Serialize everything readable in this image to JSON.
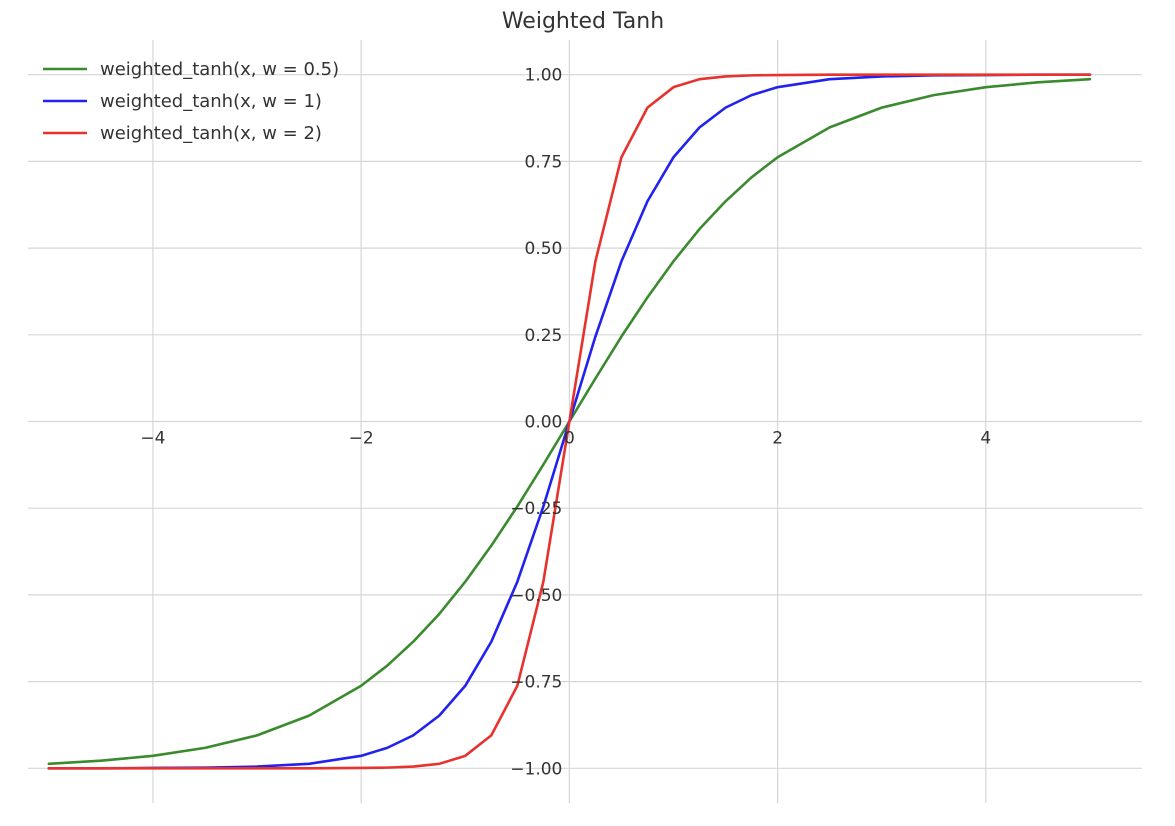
{
  "chart_data": {
    "type": "line",
    "title": "Weighted Tanh",
    "xlabel": "",
    "ylabel": "",
    "xlim": [
      -5.2,
      5.5
    ],
    "ylim": [
      -1.1,
      1.1
    ],
    "x_ticks": [
      -4,
      -2,
      0,
      2,
      4
    ],
    "x_tick_labels": [
      "−4",
      "−2",
      "0",
      "2",
      "4"
    ],
    "y_ticks": [
      -1.0,
      -0.75,
      -0.5,
      -0.25,
      0.0,
      0.25,
      0.5,
      0.75,
      1.0
    ],
    "y_tick_labels": [
      "−1.00",
      "−0.75",
      "−0.50",
      "−0.25",
      "0.00",
      "0.25",
      "0.50",
      "0.75",
      "1.00"
    ],
    "grid": true,
    "legend_position": "top-left",
    "x": [
      -5,
      -4.5,
      -4,
      -3.5,
      -3,
      -2.5,
      -2,
      -1.75,
      -1.5,
      -1.25,
      -1,
      -0.75,
      -0.5,
      -0.25,
      0,
      0.25,
      0.5,
      0.75,
      1,
      1.25,
      1.5,
      1.75,
      2,
      2.5,
      3,
      3.5,
      4,
      4.5,
      5
    ],
    "series": [
      {
        "name": "weighted_tanh(x, w = 0.5)",
        "color": "#3a8a2e",
        "values": [
          -0.987,
          -0.978,
          -0.964,
          -0.941,
          -0.905,
          -0.848,
          -0.762,
          -0.704,
          -0.635,
          -0.555,
          -0.462,
          -0.358,
          -0.245,
          -0.124,
          0.0,
          0.124,
          0.245,
          0.358,
          0.462,
          0.555,
          0.635,
          0.704,
          0.762,
          0.848,
          0.905,
          0.941,
          0.964,
          0.978,
          0.987
        ]
      },
      {
        "name": "weighted_tanh(x, w = 1)",
        "color": "#2222ee",
        "values": [
          -1.0,
          -1.0,
          -0.999,
          -0.998,
          -0.995,
          -0.987,
          -0.964,
          -0.941,
          -0.905,
          -0.848,
          -0.762,
          -0.635,
          -0.462,
          -0.245,
          0.0,
          0.245,
          0.462,
          0.635,
          0.762,
          0.848,
          0.905,
          0.941,
          0.964,
          0.987,
          0.995,
          0.998,
          0.999,
          1.0,
          1.0
        ]
      },
      {
        "name": "weighted_tanh(x, w = 2)",
        "color": "#e8322e",
        "values": [
          -1.0,
          -1.0,
          -1.0,
          -1.0,
          -1.0,
          -1.0,
          -0.999,
          -0.998,
          -0.995,
          -0.987,
          -0.964,
          -0.905,
          -0.762,
          -0.462,
          0.0,
          0.462,
          0.762,
          0.905,
          0.964,
          0.987,
          0.995,
          0.998,
          0.999,
          1.0,
          1.0,
          1.0,
          1.0,
          1.0,
          1.0
        ]
      }
    ]
  }
}
